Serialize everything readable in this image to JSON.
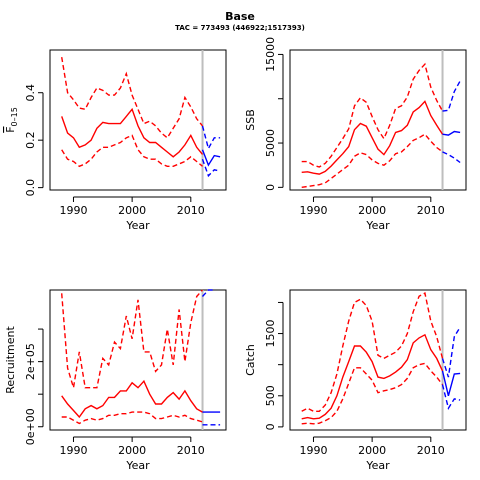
{
  "header": {
    "title": "Base",
    "subtitle": "TAC = 773493 (446922;1517393)"
  },
  "colors": {
    "historical": "#ff0000",
    "projection": "#0000ff",
    "reference_line": "#bebebe"
  },
  "reference_year": 2012,
  "chart_data": [
    {
      "type": "line",
      "ylabel": "F̅ 0–15",
      "ylabel_base": "F",
      "ylabel_sub": "0–15",
      "xlabel": "Year",
      "xlim": [
        1986,
        2016
      ],
      "ylim": [
        -0.01,
        0.58
      ],
      "x_ticks": [
        1990,
        2000,
        2010
      ],
      "y_ticks": [
        0.0,
        0.2,
        0.4
      ],
      "y_tick_labels": [
        "0.0",
        "0.2",
        "0.4"
      ],
      "series": [
        {
          "role": "median",
          "style": "solid",
          "color": "#ff0000",
          "x": [
            1988,
            1989,
            1990,
            1991,
            1992,
            1993,
            1994,
            1995,
            1996,
            1997,
            1998,
            1999,
            2000,
            2001,
            2002,
            2003,
            2004,
            2005,
            2006,
            2007,
            2008,
            2009,
            2010,
            2011,
            2012
          ],
          "y": [
            0.3,
            0.23,
            0.21,
            0.17,
            0.18,
            0.2,
            0.25,
            0.275,
            0.27,
            0.27,
            0.27,
            0.3,
            0.33,
            0.26,
            0.21,
            0.19,
            0.19,
            0.17,
            0.15,
            0.13,
            0.15,
            0.18,
            0.22,
            0.17,
            0.14
          ]
        },
        {
          "role": "upper",
          "style": "dashed",
          "color": "#ff0000",
          "x": [
            1988,
            1989,
            1990,
            1991,
            1992,
            1993,
            1994,
            1995,
            1996,
            1997,
            1998,
            1999,
            2000,
            2001,
            2002,
            2003,
            2004,
            2005,
            2006,
            2007,
            2008,
            2009,
            2010,
            2011,
            2012
          ],
          "y": [
            0.55,
            0.4,
            0.37,
            0.335,
            0.33,
            0.38,
            0.42,
            0.41,
            0.39,
            0.39,
            0.42,
            0.48,
            0.39,
            0.33,
            0.27,
            0.28,
            0.26,
            0.23,
            0.21,
            0.25,
            0.29,
            0.38,
            0.34,
            0.29,
            0.26
          ]
        },
        {
          "role": "lower",
          "style": "dashed",
          "color": "#ff0000",
          "x": [
            1988,
            1989,
            1990,
            1991,
            1992,
            1993,
            1994,
            1995,
            1996,
            1997,
            1998,
            1999,
            2000,
            2001,
            2002,
            2003,
            2004,
            2005,
            2006,
            2007,
            2008,
            2009,
            2010,
            2011,
            2012
          ],
          "y": [
            0.16,
            0.12,
            0.11,
            0.09,
            0.1,
            0.12,
            0.15,
            0.17,
            0.17,
            0.18,
            0.19,
            0.21,
            0.22,
            0.16,
            0.13,
            0.12,
            0.12,
            0.1,
            0.09,
            0.09,
            0.1,
            0.11,
            0.13,
            0.11,
            0.09
          ]
        },
        {
          "role": "projection-median",
          "style": "solid",
          "color": "#0000ff",
          "x": [
            2012,
            2013,
            2014,
            2015
          ],
          "y": [
            0.16,
            0.095,
            0.135,
            0.13
          ]
        },
        {
          "role": "projection-upper",
          "style": "dashed",
          "color": "#0000ff",
          "x": [
            2012,
            2013,
            2014,
            2015
          ],
          "y": [
            0.26,
            0.165,
            0.21,
            0.21
          ]
        },
        {
          "role": "projection-lower",
          "style": "dashed",
          "color": "#0000ff",
          "x": [
            2012,
            2013,
            2014,
            2015
          ],
          "y": [
            0.12,
            0.05,
            0.075,
            0.07
          ]
        }
      ]
    },
    {
      "type": "line",
      "ylabel": "SSB",
      "xlabel": "Year",
      "xlim": [
        1986,
        2016
      ],
      "ylim": [
        -300,
        15500
      ],
      "x_ticks": [
        1990,
        2000,
        2010
      ],
      "y_ticks": [
        0,
        5000,
        10000,
        15000
      ],
      "y_tick_labels": [
        "0",
        "5000",
        "",
        "15000"
      ],
      "series": [
        {
          "role": "median",
          "style": "solid",
          "color": "#ff0000",
          "x": [
            1988,
            1989,
            1990,
            1991,
            1992,
            1993,
            1994,
            1995,
            1996,
            1997,
            1998,
            1999,
            2000,
            2001,
            2002,
            2003,
            2004,
            2005,
            2006,
            2007,
            2008,
            2009,
            2010,
            2011,
            2012
          ],
          "y": [
            1700,
            1750,
            1600,
            1500,
            1800,
            2400,
            3100,
            3800,
            4600,
            6500,
            7200,
            6900,
            5600,
            4300,
            3700,
            4700,
            6200,
            6400,
            7000,
            8500,
            9000,
            9700,
            8100,
            7000,
            6000
          ]
        },
        {
          "role": "upper",
          "style": "dashed",
          "color": "#ff0000",
          "x": [
            1988,
            1989,
            1990,
            1991,
            1992,
            1993,
            1994,
            1995,
            1996,
            1997,
            1998,
            1999,
            2000,
            2001,
            2002,
            2003,
            2004,
            2005,
            2006,
            2007,
            2008,
            2009,
            2010,
            2011,
            2012
          ],
          "y": [
            2900,
            2900,
            2500,
            2300,
            2700,
            3500,
            4500,
            5500,
            6600,
            9200,
            10100,
            9600,
            8000,
            6500,
            5500,
            7000,
            8900,
            9200,
            10200,
            12200,
            13200,
            13900,
            11300,
            9800,
            8600
          ]
        },
        {
          "role": "lower",
          "style": "dashed",
          "color": "#ff0000",
          "x": [
            1988,
            1989,
            1990,
            1991,
            1992,
            1993,
            1994,
            1995,
            1996,
            1997,
            1998,
            1999,
            2000,
            2001,
            2002,
            2003,
            2004,
            2005,
            2006,
            2007,
            2008,
            2009,
            2010,
            2011,
            2012
          ],
          "y": [
            0,
            100,
            200,
            300,
            500,
            1000,
            1500,
            2000,
            2500,
            3500,
            3900,
            3700,
            3100,
            2700,
            2500,
            3000,
            3800,
            4000,
            4600,
            5300,
            5600,
            6000,
            5200,
            4500,
            4000
          ]
        },
        {
          "role": "projection-median",
          "style": "solid",
          "color": "#0000ff",
          "x": [
            2012,
            2013,
            2014,
            2015
          ],
          "y": [
            6000,
            5900,
            6300,
            6200
          ]
        },
        {
          "role": "projection-upper",
          "style": "dashed",
          "color": "#0000ff",
          "x": [
            2012,
            2013,
            2014,
            2015
          ],
          "y": [
            8600,
            8700,
            10800,
            12000
          ]
        },
        {
          "role": "projection-lower",
          "style": "dashed",
          "color": "#0000ff",
          "x": [
            2012,
            2013,
            2014,
            2015
          ],
          "y": [
            4000,
            3700,
            3300,
            2800
          ]
        }
      ]
    },
    {
      "type": "line",
      "ylabel": "Recruitment",
      "xlabel": "Year",
      "xlim": [
        1986,
        2016
      ],
      "ylim": [
        -10000,
        420000
      ],
      "x_ticks": [
        1990,
        2000,
        2010
      ],
      "y_ticks": [
        0,
        100000,
        200000,
        300000
      ],
      "y_tick_labels": [
        "0e+00",
        "",
        "2e+05",
        ""
      ],
      "series": [
        {
          "role": "median",
          "style": "solid",
          "color": "#ff0000",
          "x": [
            1988,
            1989,
            1990,
            1991,
            1992,
            1993,
            1994,
            1995,
            1996,
            1997,
            1998,
            1999,
            2000,
            2001,
            2002,
            2003,
            2004,
            2005,
            2006,
            2007,
            2008,
            2009,
            2010,
            2011,
            2012
          ],
          "y": [
            95000,
            70000,
            50000,
            30000,
            55000,
            65000,
            55000,
            65000,
            90000,
            90000,
            110000,
            110000,
            135000,
            120000,
            140000,
            100000,
            70000,
            70000,
            90000,
            105000,
            85000,
            110000,
            80000,
            55000,
            45000
          ]
        },
        {
          "role": "upper",
          "style": "dashed",
          "color": "#ff0000",
          "x": [
            1988,
            1989,
            1990,
            1991,
            1992,
            1993,
            1994,
            1995,
            1996,
            1997,
            1998,
            1999,
            2000,
            2001,
            2002,
            2003,
            2004,
            2005,
            2006,
            2007,
            2008,
            2009,
            2010,
            2011,
            2012
          ],
          "y": [
            410000,
            180000,
            120000,
            230000,
            120000,
            120000,
            120000,
            210000,
            190000,
            260000,
            240000,
            340000,
            270000,
            390000,
            230000,
            230000,
            170000,
            190000,
            300000,
            190000,
            360000,
            200000,
            320000,
            400000,
            460000
          ]
        },
        {
          "role": "lower",
          "style": "dashed",
          "color": "#ff0000",
          "x": [
            1988,
            1989,
            1990,
            1991,
            1992,
            1993,
            1994,
            1995,
            1996,
            1997,
            1998,
            1999,
            2000,
            2001,
            2002,
            2003,
            2004,
            2005,
            2006,
            2007,
            2008,
            2009,
            2010,
            2011,
            2012
          ],
          "y": [
            30000,
            30000,
            20000,
            10000,
            20000,
            25000,
            20000,
            25000,
            35000,
            35000,
            40000,
            40000,
            45000,
            45000,
            45000,
            40000,
            25000,
            25000,
            30000,
            35000,
            30000,
            35000,
            25000,
            20000,
            15000
          ]
        },
        {
          "role": "projection-median",
          "style": "solid",
          "color": "#0000ff",
          "x": [
            2012,
            2013,
            2014,
            2015
          ],
          "y": [
            45000,
            45000,
            45000,
            45000
          ]
        },
        {
          "role": "projection-upper",
          "style": "dashed",
          "color": "#0000ff",
          "x": [
            2012,
            2013,
            2014
          ],
          "y": [
            400000,
            430000,
            470000
          ]
        },
        {
          "role": "projection-lower",
          "style": "dashed",
          "color": "#0000ff",
          "x": [
            2012,
            2013,
            2014,
            2015
          ],
          "y": [
            6000,
            6000,
            6000,
            6000
          ]
        }
      ]
    },
    {
      "type": "line",
      "ylabel": "Catch",
      "xlabel": "Year",
      "xlim": [
        1986,
        2016
      ],
      "ylim": [
        -50,
        2200
      ],
      "x_ticks": [
        1990,
        2000,
        2010
      ],
      "y_ticks": [
        0,
        500,
        1000,
        1500,
        2000
      ],
      "y_tick_labels": [
        "0",
        "500",
        "",
        "1500",
        ""
      ],
      "series": [
        {
          "role": "median",
          "style": "solid",
          "color": "#ff0000",
          "x": [
            1988,
            1989,
            1990,
            1991,
            1992,
            1993,
            1994,
            1995,
            1996,
            1997,
            1998,
            1999,
            2000,
            2001,
            2002,
            2003,
            2004,
            2005,
            2006,
            2007,
            2008,
            2009,
            2010,
            2011,
            2012
          ],
          "y": [
            130,
            150,
            130,
            140,
            200,
            300,
            500,
            800,
            1050,
            1300,
            1300,
            1200,
            1050,
            800,
            780,
            820,
            880,
            960,
            1080,
            1350,
            1430,
            1480,
            1240,
            1100,
            900
          ]
        },
        {
          "role": "upper",
          "style": "dashed",
          "color": "#ff0000",
          "x": [
            1988,
            1989,
            1990,
            1991,
            1992,
            1993,
            1994,
            1995,
            1996,
            1997,
            1998,
            1999,
            2000,
            2001,
            2002,
            2003,
            2004,
            2005,
            2006,
            2007,
            2008,
            2009,
            2010,
            2011,
            2012
          ],
          "y": [
            250,
            300,
            250,
            250,
            350,
            550,
            850,
            1300,
            1700,
            2000,
            2050,
            1950,
            1700,
            1150,
            1100,
            1150,
            1200,
            1300,
            1500,
            1850,
            2100,
            2150,
            1700,
            1450,
            1100
          ]
        },
        {
          "role": "lower",
          "style": "dashed",
          "color": "#ff0000",
          "x": [
            1988,
            1989,
            1990,
            1991,
            1992,
            1993,
            1994,
            1995,
            1996,
            1997,
            1998,
            1999,
            2000,
            2001,
            2002,
            2003,
            2004,
            2005,
            2006,
            2007,
            2008,
            2009,
            2010,
            2011,
            2012
          ],
          "y": [
            50,
            60,
            50,
            60,
            100,
            150,
            250,
            450,
            700,
            950,
            950,
            850,
            750,
            550,
            580,
            600,
            630,
            680,
            780,
            950,
            1000,
            1020,
            900,
            800,
            680
          ]
        },
        {
          "role": "projection-median",
          "style": "solid",
          "color": "#0000ff",
          "x": [
            2012,
            2013,
            2014,
            2015
          ],
          "y": [
            900,
            500,
            850,
            860
          ]
        },
        {
          "role": "projection-upper",
          "style": "dashed",
          "color": "#0000ff",
          "x": [
            2012,
            2013,
            2014,
            2015
          ],
          "y": [
            1100,
            800,
            1450,
            1600
          ]
        },
        {
          "role": "projection-lower",
          "style": "dashed",
          "color": "#0000ff",
          "x": [
            2012,
            2013,
            2014,
            2015
          ],
          "y": [
            680,
            300,
            450,
            430
          ]
        }
      ]
    }
  ]
}
